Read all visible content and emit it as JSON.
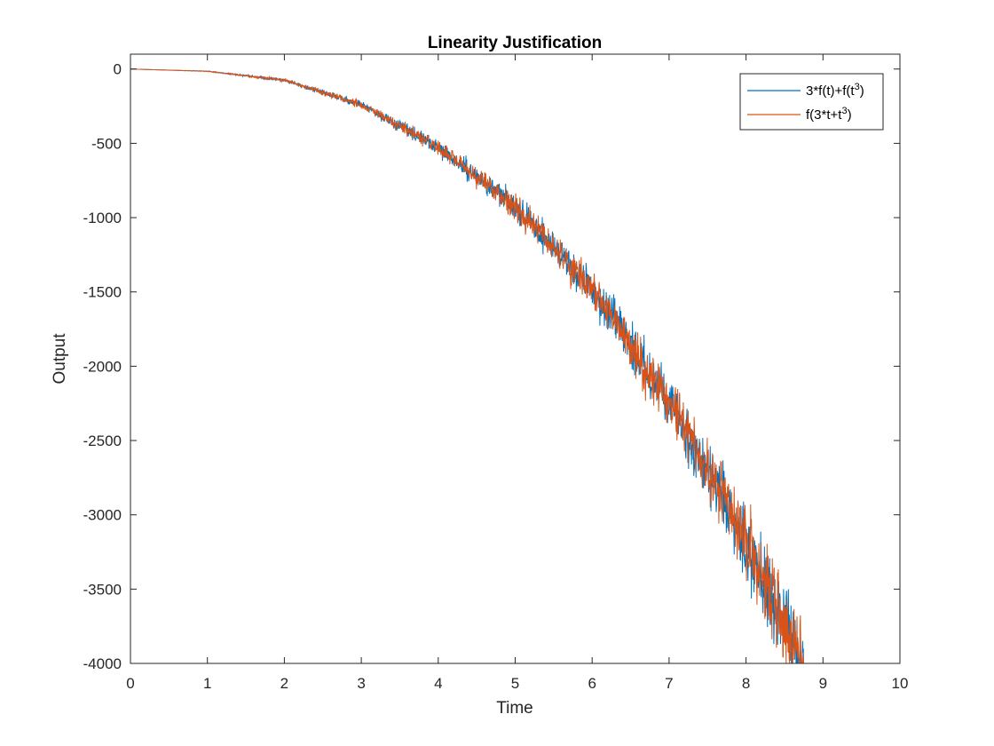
{
  "chart_data": {
    "type": "line",
    "title": "Linearity Justification",
    "xlabel": "Time",
    "ylabel": "Output",
    "xlim": [
      0,
      10
    ],
    "ylim": [
      -4000,
      100
    ],
    "xticks": [
      "0",
      "1",
      "2",
      "3",
      "4",
      "5",
      "6",
      "7",
      "8",
      "9",
      "10"
    ],
    "yticks": [
      "0",
      "-500",
      "-1000",
      "-1500",
      "-2000",
      "-2500",
      "-3000",
      "-3500",
      "-4000"
    ],
    "grid": false,
    "legend_position": "top-right",
    "series": [
      {
        "name": "3*f(t)+f(t³)",
        "color": "#0072BD",
        "trend": {
          "x": [
            0,
            1,
            2,
            3,
            4,
            5,
            6,
            7,
            8,
            9
          ],
          "y": [
            0,
            -15,
            -75,
            -240,
            -530,
            -920,
            -1480,
            -2240,
            -3180,
            -4300
          ]
        },
        "noise_amplitude": 230,
        "seed": 11
      },
      {
        "name": "f(3*t+t³)",
        "color": "#D95319",
        "trend": {
          "x": [
            0,
            1,
            2,
            3,
            4,
            5,
            6,
            7,
            8,
            9
          ],
          "y": [
            0,
            -15,
            -75,
            -240,
            -530,
            -920,
            -1480,
            -2240,
            -3180,
            -4300
          ]
        },
        "noise_amplitude": 240,
        "seed": 29
      }
    ],
    "legend": [
      {
        "base": "3*f(t)+f(t",
        "sup": "3",
        "tail": ")"
      },
      {
        "base": "f(3*t+t",
        "sup": "3",
        "tail": ")"
      }
    ]
  }
}
